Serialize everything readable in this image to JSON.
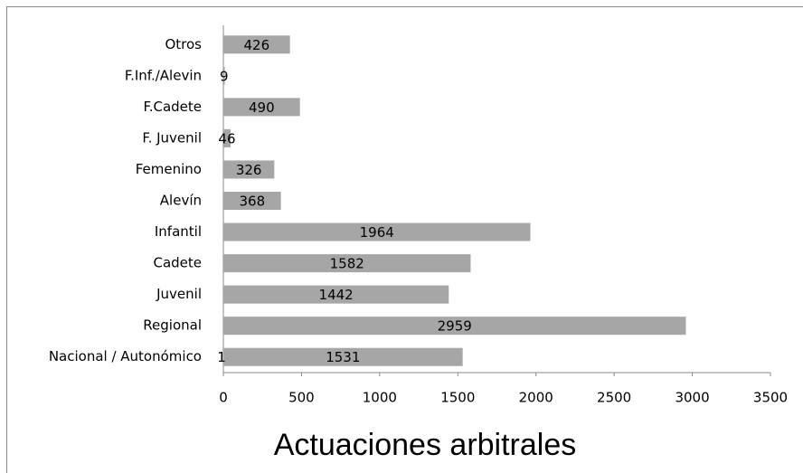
{
  "chart_data": {
    "type": "bar",
    "orientation": "horizontal",
    "title": "Actuaciones arbitrales",
    "categories": [
      "Otros",
      "F.Inf./Alevin",
      "F.Cadete",
      "F. Juvenil",
      "Femenino",
      "Alevín",
      "Infantil",
      "Cadete",
      "Juvenil",
      "Regional",
      "Nacional / Autonómico"
    ],
    "values": [
      426,
      9,
      490,
      46,
      326,
      368,
      1964,
      1582,
      1442,
      2959,
      1531
    ],
    "color": "#a6a6a6",
    "annotation": "1",
    "xlim": [
      0,
      3500
    ],
    "xticks": [
      0,
      500,
      1000,
      1500,
      2000,
      2500,
      3000,
      3500
    ],
    "grid": false
  }
}
